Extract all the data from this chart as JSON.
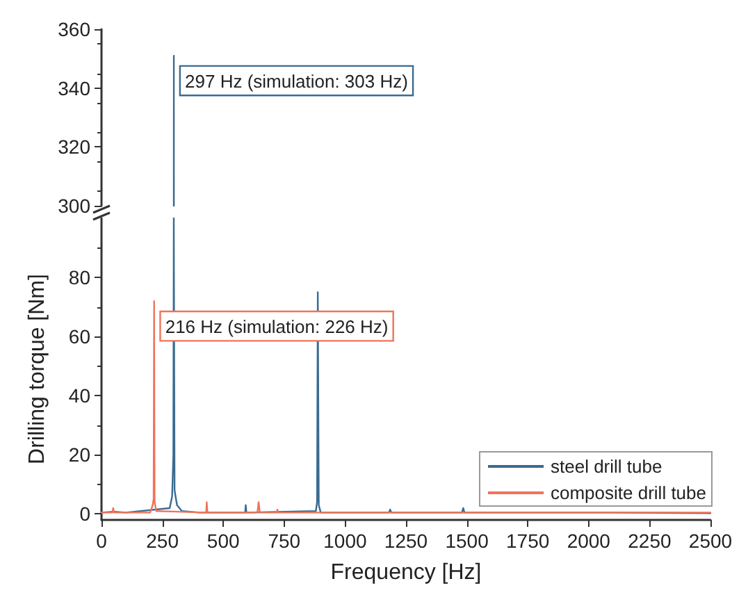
{
  "chart_data": [
    {
      "type": "line",
      "xlim": [
        0,
        2500
      ],
      "ylim": [
        300,
        360
      ],
      "yticks": [
        300,
        320,
        340,
        360
      ],
      "tick_labels": "y",
      "grid": false,
      "legend": false,
      "annotations": [
        {
          "text": "297 Hz (simulation: 303 Hz)",
          "x": 297,
          "y": 351
        }
      ],
      "series": [
        {
          "color": "#3a6b91",
          "x": [
            296.8,
            297,
            297.2
          ],
          "values": [
            300,
            351,
            300
          ]
        }
      ]
    },
    {
      "type": "line",
      "xlim": [
        0,
        2500
      ],
      "ylim": [
        -2,
        100
      ],
      "xticks": [
        0,
        250,
        500,
        750,
        1000,
        1250,
        1500,
        1750,
        2000,
        2250,
        2500
      ],
      "yticks": [
        0,
        20,
        40,
        60,
        80
      ],
      "xlabel": "Frequency [Hz]",
      "ylabel": "Drilling torque [Nm]",
      "grid": false,
      "legend": "bottom right",
      "annotations": [
        {
          "text": "216 Hz (simulation: 226 Hz)",
          "x": 216,
          "y": 72
        }
      ],
      "series": [
        {
          "name": "steel drill tube",
          "color": "#3a6b91",
          "x": [
            0,
            50,
            100,
            280,
            290,
            295,
            296.8,
            297.2,
            300,
            310,
            330,
            400,
            590,
            592,
            595,
            880,
            885,
            888,
            892,
            900,
            1180,
            1185,
            1190,
            1480,
            1485,
            1490,
            2070,
            2500
          ],
          "values": [
            0.5,
            0.8,
            0.5,
            2,
            6,
            20,
            100,
            100,
            8,
            3,
            1,
            0.5,
            0.5,
            3,
            0.5,
            1,
            4,
            75,
            3,
            0.5,
            0.5,
            1.5,
            0.5,
            0.5,
            2,
            0.5,
            0.5,
            0.3
          ]
        },
        {
          "name": "composite drill tube",
          "color": "#f0735a",
          "x": [
            0,
            45,
            48,
            52,
            200,
            210,
            214,
            216,
            218,
            225,
            430,
            432,
            435,
            640,
            645,
            650,
            720,
            722,
            725,
            2500
          ],
          "values": [
            0.5,
            0.5,
            2,
            0.5,
            0.5,
            3,
            5,
            72,
            4,
            1,
            0.5,
            4,
            0.5,
            0.5,
            4,
            0.5,
            0.5,
            1.5,
            0.5,
            0.5
          ]
        }
      ]
    }
  ]
}
